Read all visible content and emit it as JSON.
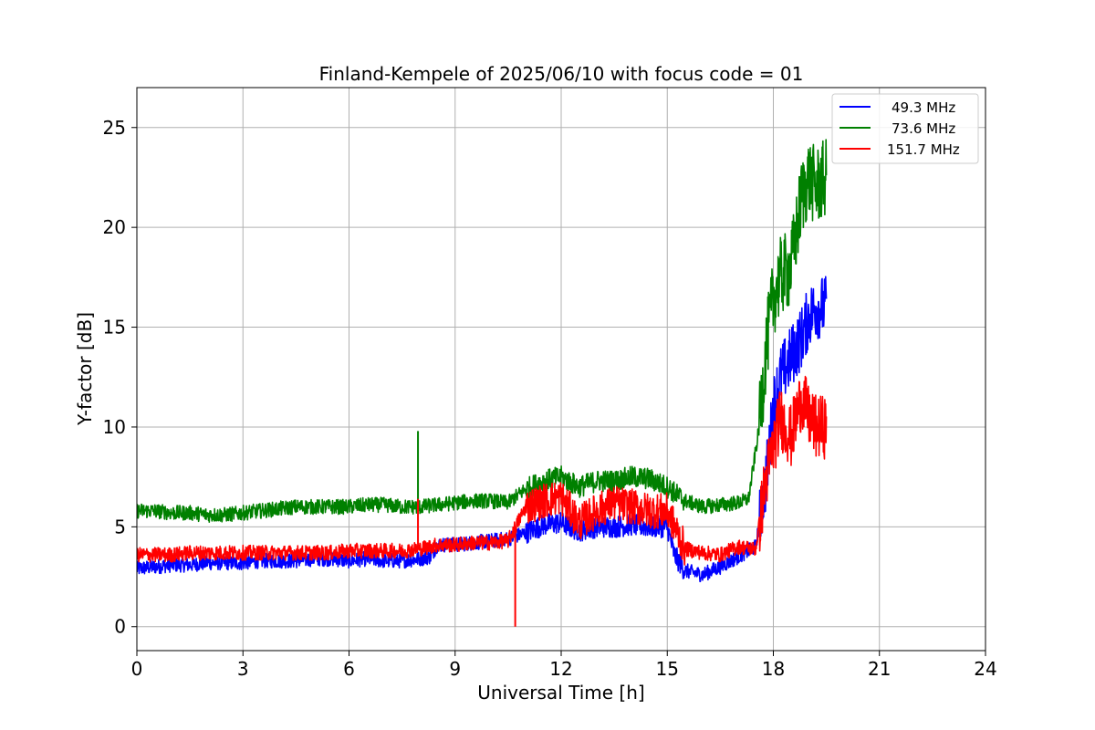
{
  "chart_data": {
    "type": "line",
    "title": "Finland-Kempele of 2025/06/10 with focus code = 01",
    "xlabel": "Universal Time [h]",
    "ylabel": "Y-factor [dB]",
    "xlim": [
      0,
      24
    ],
    "ylim": [
      -1.2,
      27
    ],
    "xticks": [
      0,
      3,
      6,
      9,
      12,
      15,
      18,
      21,
      24
    ],
    "yticks": [
      0,
      5,
      10,
      15,
      20,
      25
    ],
    "grid": true,
    "legend_position": "top-right",
    "series": [
      {
        "name": "49.3 MHz",
        "color": "#0000ff",
        "x": [
          0,
          0.5,
          1,
          1.5,
          2,
          2.5,
          3,
          3.5,
          4,
          4.5,
          5,
          5.5,
          6,
          6.5,
          7,
          7.5,
          8,
          8.3,
          8.5,
          9,
          9.5,
          10,
          10.5,
          11,
          11.5,
          12,
          12.5,
          13,
          13.5,
          14,
          14.5,
          15,
          15.2,
          15.5,
          16,
          16.5,
          17,
          17.5,
          17.8,
          18,
          18.2,
          18.5,
          18.8,
          19,
          19.2,
          19.5
        ],
        "y": [
          2.9,
          3.0,
          3.1,
          3.1,
          3.2,
          3.2,
          3.2,
          3.3,
          3.3,
          3.3,
          3.4,
          3.4,
          3.3,
          3.4,
          3.3,
          3.3,
          3.4,
          3.5,
          4.1,
          4.1,
          4.2,
          4.3,
          4.4,
          4.7,
          5.1,
          5.2,
          4.8,
          5.0,
          5.0,
          5.1,
          5.0,
          5.0,
          3.6,
          2.8,
          2.6,
          3.0,
          3.5,
          4.0,
          7.5,
          11.0,
          12.5,
          13.5,
          14.5,
          15.5,
          16.0,
          16.0
        ]
      },
      {
        "name": "73.6 MHz",
        "color": "#008000",
        "x": [
          0,
          0.5,
          1,
          1.5,
          2,
          2.5,
          3,
          3.5,
          4,
          4.5,
          5,
          5.5,
          6,
          6.5,
          7,
          7.5,
          8,
          8.5,
          9,
          9.5,
          10,
          10.5,
          11,
          11.5,
          12,
          12.5,
          13,
          13.5,
          14,
          14.5,
          15,
          15.5,
          16,
          16.5,
          17,
          17.3,
          17.6,
          17.8,
          18,
          18.2,
          18.5,
          18.8,
          19,
          19.2,
          19.5
        ],
        "y": [
          5.8,
          5.8,
          5.7,
          5.7,
          5.6,
          5.6,
          5.7,
          5.8,
          5.9,
          6.0,
          6.0,
          6.0,
          6.0,
          6.1,
          6.1,
          6.0,
          6.0,
          6.1,
          6.2,
          6.3,
          6.3,
          6.2,
          6.9,
          7.3,
          7.5,
          7.0,
          7.3,
          7.3,
          7.5,
          7.4,
          7.0,
          6.3,
          6.0,
          6.1,
          6.2,
          6.4,
          10.0,
          14.0,
          16.5,
          17.5,
          18.0,
          21.5,
          22.5,
          22.0,
          22.5
        ]
      },
      {
        "name": "151.7 MHz",
        "color": "#ff0000",
        "x": [
          0,
          0.5,
          1,
          1.5,
          2,
          2.5,
          3,
          3.5,
          4,
          4.5,
          5,
          5.5,
          6,
          6.5,
          7,
          7.5,
          8,
          8.5,
          9,
          9.5,
          10,
          10.5,
          11,
          11.5,
          12,
          12.5,
          13,
          13.5,
          14,
          14.5,
          15,
          15.5,
          16,
          16.5,
          17,
          17.5,
          17.8,
          18,
          18.2,
          18.5,
          18.8,
          19,
          19.2,
          19.5
        ],
        "y": [
          3.6,
          3.6,
          3.6,
          3.7,
          3.7,
          3.7,
          3.7,
          3.7,
          3.7,
          3.7,
          3.7,
          3.7,
          3.8,
          3.8,
          3.8,
          3.8,
          3.9,
          4.1,
          4.1,
          4.2,
          4.2,
          4.3,
          6.0,
          6.3,
          6.5,
          5.2,
          5.8,
          6.2,
          6.0,
          5.8,
          5.8,
          3.9,
          3.7,
          3.6,
          4.0,
          3.9,
          7.5,
          9.0,
          10.5,
          9.5,
          11.5,
          10.5,
          10.0,
          10.0
        ]
      }
    ],
    "annotations_spikes": [
      {
        "series": "73.6 MHz",
        "x": 7.95,
        "y": 9.8
      },
      {
        "series": "151.7 MHz",
        "x": 10.7,
        "y": 0.0
      },
      {
        "series": "151.7 MHz",
        "x": 7.95,
        "y": 6.4
      }
    ]
  }
}
